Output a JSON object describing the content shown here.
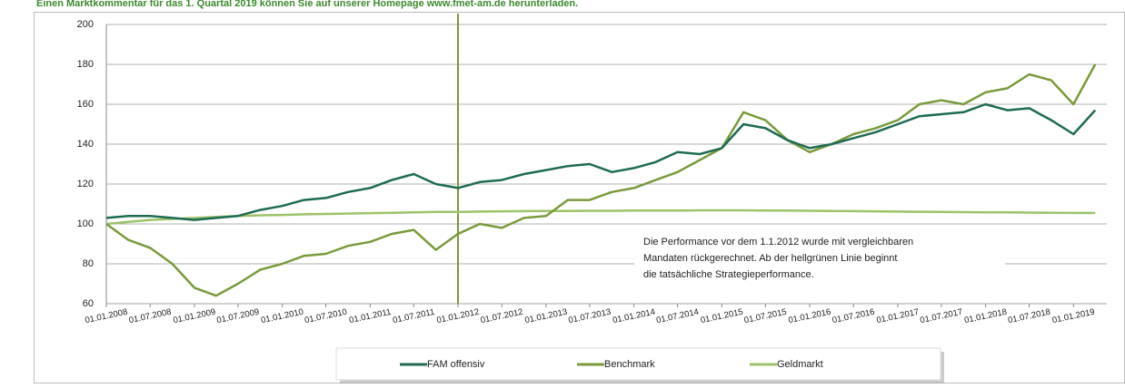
{
  "chart_data": {
    "type": "line",
    "title": "Einen Marktkommentar für das 1. Quartal 2019 können Sie auf unserer Homepage www.fmet-am.de herunterladen.",
    "annotation": [
      "Die Performance vor dem 1.1.2012 wurde mit vergleichbaren",
      "Mandaten rückgerechnet. Ab der hellgrünen Linie  beginnt",
      "die tatsächliche Strategieperformance."
    ],
    "vline": {
      "x": "01.01.2012",
      "color": "#7a9a3a"
    },
    "x": [
      "01.01.2008",
      "01.04.2008",
      "01.07.2008",
      "01.10.2008",
      "01.01.2009",
      "01.04.2009",
      "01.07.2009",
      "01.10.2009",
      "01.01.2010",
      "01.04.2010",
      "01.07.2010",
      "01.10.2010",
      "01.01.2011",
      "01.04.2011",
      "01.07.2011",
      "01.10.2011",
      "01.01.2012",
      "01.04.2012",
      "01.07.2012",
      "01.10.2012",
      "01.01.2013",
      "01.04.2013",
      "01.07.2013",
      "01.10.2013",
      "01.01.2014",
      "01.04.2014",
      "01.07.2014",
      "01.10.2014",
      "01.01.2015",
      "01.04.2015",
      "01.07.2015",
      "01.10.2015",
      "01.01.2016",
      "01.04.2016",
      "01.07.2016",
      "01.10.2016",
      "01.01.2017",
      "01.04.2017",
      "01.07.2017",
      "01.10.2017",
      "01.01.2018",
      "01.04.2018",
      "01.07.2018",
      "01.10.2018",
      "01.01.2019",
      "01.04.2019"
    ],
    "xticks": [
      "01.01.2008",
      "01.07.2008",
      "01.01.2009",
      "01.07.2009",
      "01.01.2010",
      "01.07.2010",
      "01.01.2011",
      "01.07.2011",
      "01.01.2012",
      "01.07.2012",
      "01.01.2013",
      "01.07.2013",
      "01.01.2014",
      "01.07.2014",
      "01.01.2015",
      "01.07.2015",
      "01.01.2016",
      "01.07.2016",
      "01.01.2017",
      "01.07.2017",
      "01.01.2018",
      "01.07.2018",
      "01.01.2019"
    ],
    "ylim": [
      60,
      200
    ],
    "yticks": [
      60,
      80,
      100,
      120,
      140,
      160,
      180,
      200
    ],
    "grid": true,
    "series": [
      {
        "name": "FAM offensiv",
        "color": "#1d6b52",
        "values": [
          103,
          104,
          104,
          103,
          102,
          103,
          104,
          107,
          109,
          112,
          113,
          116,
          118,
          122,
          125,
          120,
          118,
          121,
          122,
          125,
          127,
          129,
          130,
          126,
          128,
          131,
          136,
          135,
          138,
          150,
          148,
          142,
          138,
          140,
          143,
          146,
          150,
          154,
          155,
          156,
          160,
          157,
          158,
          152,
          145,
          157
        ]
      },
      {
        "name": "Benchmark",
        "color": "#7a9a3a",
        "values": [
          100,
          92,
          88,
          80,
          68,
          64,
          70,
          77,
          80,
          84,
          85,
          89,
          91,
          95,
          97,
          87,
          95,
          100,
          98,
          103,
          104,
          112,
          112,
          116,
          118,
          122,
          126,
          132,
          138,
          156,
          152,
          142,
          136,
          140,
          145,
          148,
          152,
          160,
          162,
          160,
          166,
          168,
          175,
          172,
          160,
          180
        ]
      },
      {
        "name": "Geldmarkt",
        "color": "#9dc26a",
        "values": [
          100,
          101,
          102,
          102.5,
          103,
          103.5,
          104,
          104.3,
          104.5,
          104.8,
          105,
          105.2,
          105.4,
          105.6,
          105.8,
          106,
          106,
          106.2,
          106.3,
          106.4,
          106.5,
          106.5,
          106.6,
          106.6,
          106.7,
          106.7,
          106.7,
          106.8,
          106.8,
          106.8,
          106.7,
          106.7,
          106.6,
          106.5,
          106.4,
          106.3,
          106.2,
          106.1,
          106,
          105.9,
          105.8,
          105.8,
          105.7,
          105.6,
          105.5,
          105.5
        ]
      }
    ]
  }
}
